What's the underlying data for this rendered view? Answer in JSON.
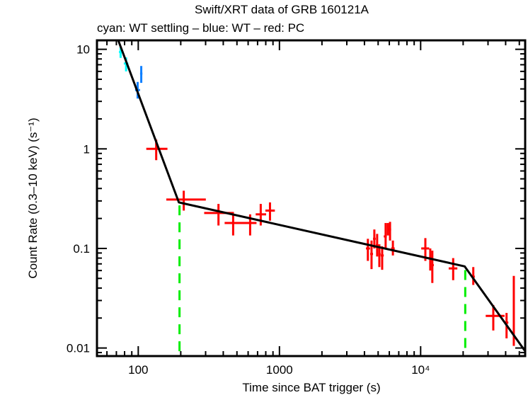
{
  "chart_data": {
    "type": "scatter",
    "title": "Swift/XRT data of GRB 160121A",
    "subtitle": "cyan: WT settling – blue: WT – red: PC",
    "xlabel": "Time since BAT trigger (s)",
    "ylabel": "Count Rate (0.3–10 keV) (s⁻¹)",
    "xscale": "log",
    "yscale": "log",
    "xlim": [
      51,
      55000
    ],
    "ylim": [
      0.0083,
      12.3
    ],
    "grid": false,
    "x_ticks": [
      {
        "value": 100,
        "label": "100"
      },
      {
        "value": 1000,
        "label": "1000"
      },
      {
        "value": 10000,
        "label": "10⁴"
      }
    ],
    "y_ticks": [
      {
        "value": 0.01,
        "label": "0.01"
      },
      {
        "value": 0.1,
        "label": "0.1"
      },
      {
        "value": 1,
        "label": "1"
      },
      {
        "value": 10,
        "label": "10"
      }
    ],
    "series": [
      {
        "name": "WT settling",
        "color": "#00ffff",
        "points": [
          {
            "x": 75,
            "xlo": 73,
            "xhi": 78,
            "y": 9.4,
            "ylo": 8.2,
            "yhi": 10.6
          },
          {
            "x": 82,
            "xlo": 79,
            "xhi": 85,
            "y": 7.2,
            "ylo": 6.0,
            "yhi": 8.3
          }
        ]
      },
      {
        "name": "WT",
        "color": "#1080ff",
        "points": [
          {
            "x": 99,
            "xlo": 95,
            "xhi": 103,
            "y": 3.9,
            "ylo": 3.2,
            "yhi": 4.7
          },
          {
            "x": 105,
            "xlo": 103,
            "xhi": 107,
            "y": 5.7,
            "ylo": 4.6,
            "yhi": 6.8
          }
        ]
      },
      {
        "name": "PC",
        "color": "#ff0000",
        "points": [
          {
            "x": 134,
            "xlo": 114,
            "xhi": 161,
            "y": 1.0,
            "ylo": 0.77,
            "yhi": 1.24
          },
          {
            "x": 210,
            "xlo": 158,
            "xhi": 301,
            "y": 0.31,
            "ylo": 0.24,
            "yhi": 0.38
          },
          {
            "x": 370,
            "xlo": 293,
            "xhi": 476,
            "y": 0.227,
            "ylo": 0.17,
            "yhi": 0.28
          },
          {
            "x": 470,
            "xlo": 409,
            "xhi": 641,
            "y": 0.18,
            "ylo": 0.135,
            "yhi": 0.22
          },
          {
            "x": 620,
            "xlo": 540,
            "xhi": 688,
            "y": 0.18,
            "ylo": 0.135,
            "yhi": 0.22
          },
          {
            "x": 737,
            "xlo": 679,
            "xhi": 805,
            "y": 0.22,
            "ylo": 0.17,
            "yhi": 0.28
          },
          {
            "x": 857,
            "xlo": 795,
            "xhi": 928,
            "y": 0.24,
            "ylo": 0.19,
            "yhi": 0.29
          },
          {
            "x": 4230,
            "xlo": 4100,
            "xhi": 4380,
            "y": 0.1,
            "ylo": 0.075,
            "yhi": 0.125
          },
          {
            "x": 4490,
            "xlo": 4390,
            "xhi": 4600,
            "y": 0.088,
            "ylo": 0.062,
            "yhi": 0.12
          },
          {
            "x": 4700,
            "xlo": 4600,
            "xhi": 4810,
            "y": 0.125,
            "ylo": 0.1,
            "yhi": 0.155
          },
          {
            "x": 4920,
            "xlo": 4810,
            "xhi": 5010,
            "y": 0.108,
            "ylo": 0.083,
            "yhi": 0.14
          },
          {
            "x": 5100,
            "xlo": 5010,
            "xhi": 5210,
            "y": 0.088,
            "ylo": 0.065,
            "yhi": 0.11
          },
          {
            "x": 5340,
            "xlo": 5210,
            "xhi": 5480,
            "y": 0.085,
            "ylo": 0.061,
            "yhi": 0.105
          },
          {
            "x": 5650,
            "xlo": 5480,
            "xhi": 5760,
            "y": 0.132,
            "ylo": 0.1,
            "yhi": 0.18
          },
          {
            "x": 5860,
            "xlo": 5760,
            "xhi": 5960,
            "y": 0.17,
            "ylo": 0.135,
            "yhi": 0.18
          },
          {
            "x": 6070,
            "xlo": 5960,
            "xhi": 6180,
            "y": 0.155,
            "ylo": 0.12,
            "yhi": 0.185
          },
          {
            "x": 6360,
            "xlo": 6180,
            "xhi": 6550,
            "y": 0.1,
            "ylo": 0.085,
            "yhi": 0.12
          },
          {
            "x": 10800,
            "xlo": 10100,
            "xhi": 11500,
            "y": 0.1,
            "ylo": 0.075,
            "yhi": 0.127
          },
          {
            "x": 11700,
            "xlo": 11400,
            "xhi": 12000,
            "y": 0.08,
            "ylo": 0.06,
            "yhi": 0.1
          },
          {
            "x": 12100,
            "xlo": 11900,
            "xhi": 12400,
            "y": 0.068,
            "ylo": 0.045,
            "yhi": 0.095
          },
          {
            "x": 17000,
            "xlo": 15800,
            "xhi": 18200,
            "y": 0.063,
            "ylo": 0.048,
            "yhi": 0.08
          },
          {
            "x": 23600,
            "xlo": 23000,
            "xhi": 24200,
            "y": 0.052,
            "ylo": 0.043,
            "yhi": 0.065
          },
          {
            "x": 32700,
            "xlo": 28900,
            "xhi": 39300,
            "y": 0.021,
            "ylo": 0.015,
            "yhi": 0.027
          },
          {
            "x": 40600,
            "xlo": 39300,
            "xhi": 41800,
            "y": 0.018,
            "ylo": 0.0125,
            "yhi": 0.0225
          },
          {
            "x": 45700,
            "xlo": 45200,
            "xhi": 46200,
            "y": 0.024,
            "ylo": 0.0105,
            "yhi": 0.053
          }
        ]
      }
    ],
    "model": {
      "name": "broken power-law fit",
      "color": "#000000",
      "points": [
        {
          "x": 72,
          "y": 12.4
        },
        {
          "x": 194,
          "y": 0.29
        },
        {
          "x": 20500,
          "y": 0.066
        },
        {
          "x": 55000,
          "y": 0.0093
        }
      ]
    },
    "breaks": {
      "color": "#00ee00",
      "times": [
        196,
        20700
      ]
    }
  }
}
